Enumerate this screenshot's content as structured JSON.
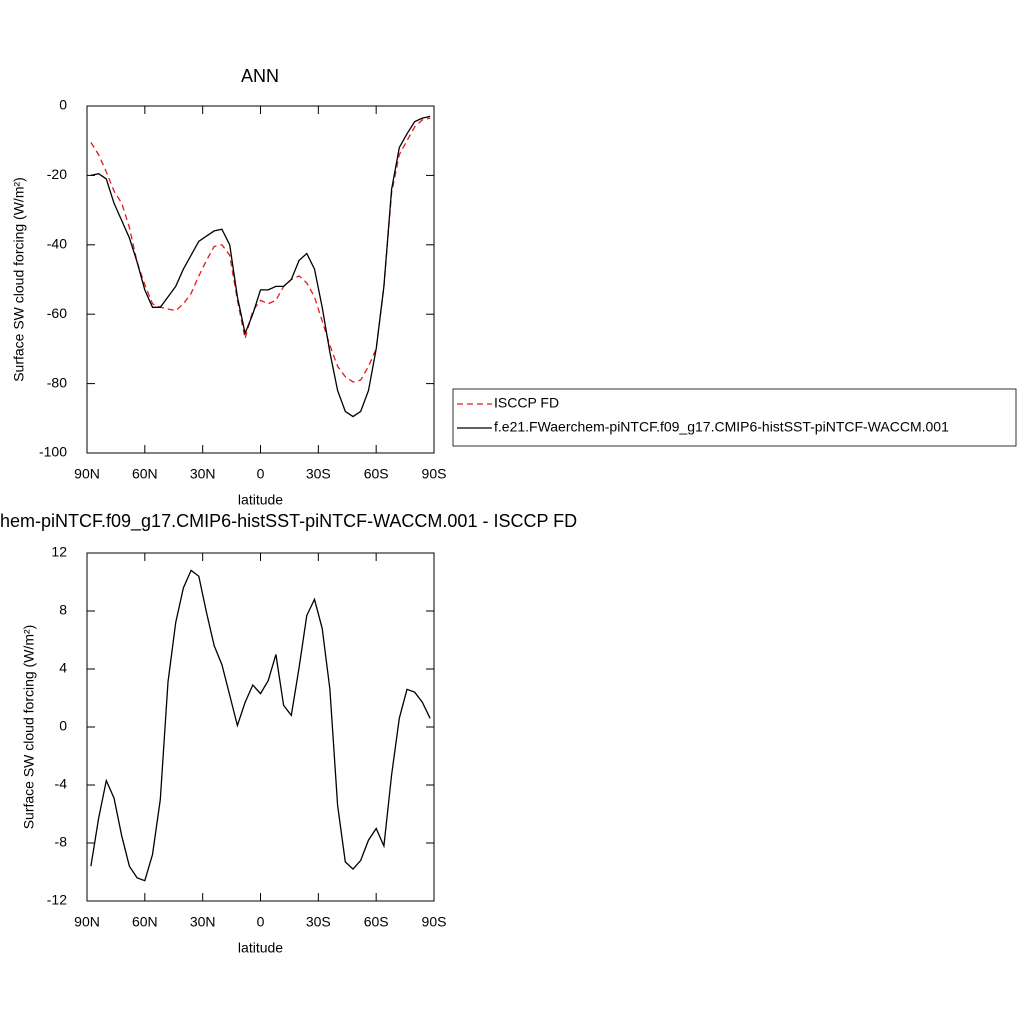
{
  "chart_data": [
    {
      "type": "line",
      "title": "ANN",
      "xlabel": "latitude",
      "ylabel": "Surface SW cloud forcing (W/m²)",
      "x": [
        88,
        84,
        80,
        76,
        72,
        68,
        64,
        60,
        56,
        52,
        48,
        44,
        40,
        36,
        32,
        28,
        24,
        20,
        16,
        12,
        8,
        4,
        0,
        -4,
        -8,
        -12,
        -16,
        -20,
        -24,
        -28,
        -32,
        -36,
        -40,
        -44,
        -48,
        -52,
        -56,
        -60,
        -64,
        -68,
        -72,
        -76,
        -80,
        -84,
        -88
      ],
      "xlim": [
        90,
        -90
      ],
      "xticks": [
        {
          "value": 90,
          "label": "90N"
        },
        {
          "value": 60,
          "label": "60N"
        },
        {
          "value": 30,
          "label": "30N"
        },
        0,
        {
          "value": -30,
          "label": "30S"
        },
        {
          "value": -60,
          "label": "60S"
        },
        {
          "value": -90,
          "label": "90S"
        }
      ],
      "ylim": [
        -100,
        0
      ],
      "yticks": [
        -100,
        -80,
        -60,
        -40,
        -20,
        0
      ],
      "legend": "right",
      "series": [
        {
          "name": "ISCCP FD",
          "color": "#e31a1c",
          "dashed": true,
          "values": [
            -10.5,
            -14,
            -19,
            -24.5,
            -28,
            -35,
            -45,
            -51.5,
            -57,
            -58,
            -58.5,
            -59,
            -57,
            -54,
            -49,
            -44.5,
            -40.5,
            -40,
            -43,
            -56,
            -67,
            -59,
            -56,
            -57,
            -56,
            -52,
            -50,
            -49,
            -51,
            -55,
            -62,
            -69,
            -75,
            -78,
            -79.5,
            -79,
            -75,
            -70,
            -52,
            -25,
            -14,
            -10,
            -6,
            -4,
            -3.5
          ]
        },
        {
          "name": "f.e21.FWaerchem-piNTCF.f09_g17.CMIP6-histSST-piNTCF-WACCM.001",
          "color": "#000000",
          "dashed": false,
          "values": [
            -20,
            -19.5,
            -21,
            -28,
            -33,
            -38,
            -45,
            -53,
            -58,
            -58,
            -55,
            -52,
            -47,
            -43,
            -39,
            -37.5,
            -36,
            -35.5,
            -40,
            -55,
            -65.5,
            -60,
            -53,
            -53,
            -52,
            -52,
            -50,
            -44.5,
            -42.5,
            -47,
            -58,
            -71,
            -82,
            -88,
            -89.5,
            -88,
            -82,
            -70,
            -52,
            -24,
            -12,
            -8,
            -4.5,
            -3.5,
            -3
          ]
        }
      ]
    },
    {
      "type": "line",
      "title": "hem-piNTCF.f09_g17.CMIP6-histSST-piNTCF-WACCM.001 - ISCCP FD",
      "xlabel": "latitude",
      "ylabel": "Surface SW cloud forcing (W/m²)",
      "x": [
        88,
        84,
        80,
        76,
        72,
        68,
        64,
        60,
        56,
        52,
        48,
        44,
        40,
        36,
        32,
        28,
        24,
        20,
        16,
        12,
        8,
        4,
        0,
        -4,
        -8,
        -12,
        -16,
        -20,
        -24,
        -28,
        -32,
        -36,
        -40,
        -44,
        -48,
        -52,
        -56,
        -60,
        -64,
        -68,
        -72,
        -76,
        -80,
        -84,
        -88
      ],
      "xlim": [
        90,
        -90
      ],
      "xticks": [
        {
          "value": 90,
          "label": "90N"
        },
        {
          "value": 60,
          "label": "60N"
        },
        {
          "value": 30,
          "label": "30N"
        },
        0,
        {
          "value": -30,
          "label": "30S"
        },
        {
          "value": -60,
          "label": "60S"
        },
        {
          "value": -90,
          "label": "90S"
        }
      ],
      "ylim": [
        -12,
        12
      ],
      "yticks": [
        -12,
        -8,
        -4,
        0,
        4,
        8,
        12
      ],
      "series": [
        {
          "color": "#000000",
          "dashed": false,
          "values": [
            -9.6,
            -6.3,
            -3.7,
            -4.9,
            -7.5,
            -9.6,
            -10.4,
            -10.6,
            -8.8,
            -5.0,
            3.1,
            7.2,
            9.6,
            10.8,
            10.4,
            7.9,
            5.6,
            4.3,
            2.2,
            0.1,
            1.7,
            2.9,
            2.3,
            3.2,
            5.0,
            1.5,
            0.8,
            4.1,
            7.7,
            8.8,
            6.8,
            2.6,
            -5.4,
            -9.3,
            -9.8,
            -9.2,
            -7.8,
            -7.0,
            -8.2,
            -3.3,
            0.6,
            2.6,
            2.4,
            1.7,
            0.6
          ]
        }
      ]
    }
  ]
}
